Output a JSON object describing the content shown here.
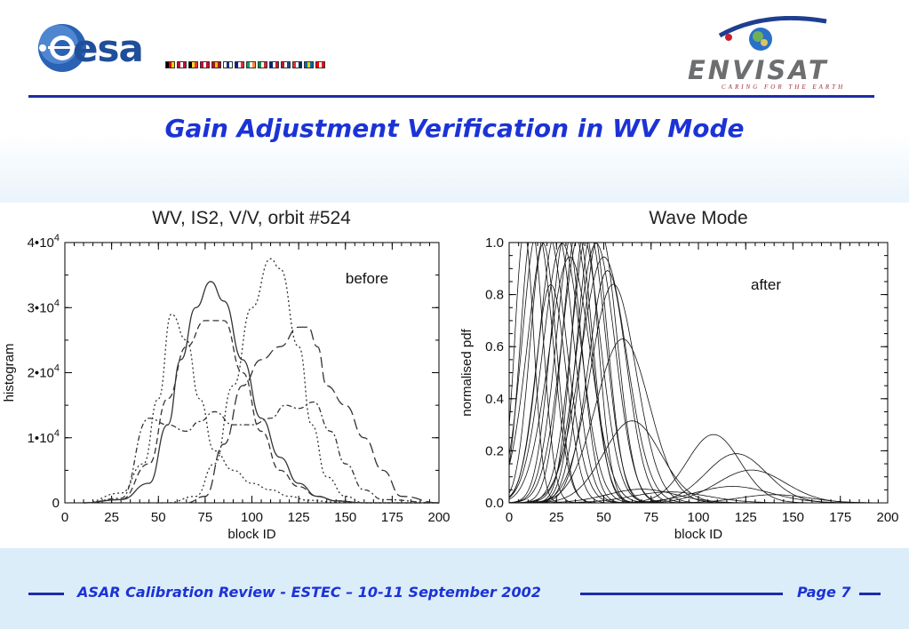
{
  "header": {
    "esa_logo_text": "esa",
    "envisat_logo_text": "ENVISAT",
    "envisat_tagline": "CARING FOR THE EARTH",
    "flag_colors": [
      [
        "#000000",
        "#dd0000",
        "#ffce00"
      ],
      [
        "#c60c30",
        "#ffffff",
        "#c60c30"
      ],
      [
        "#000000",
        "#fdda24",
        "#ef3340"
      ],
      [
        "#c60c30",
        "#ffffff",
        "#c60c30"
      ],
      [
        "#aa151b",
        "#f1bf00",
        "#aa151b"
      ],
      [
        "#ffffff",
        "#003580",
        "#ffffff"
      ],
      [
        "#002395",
        "#ffffff",
        "#ed2939"
      ],
      [
        "#169b62",
        "#ffffff",
        "#ff883e"
      ],
      [
        "#009246",
        "#ffffff",
        "#ce2b37"
      ],
      [
        "#00247d",
        "#ffffff",
        "#cf142b"
      ],
      [
        "#ae1c28",
        "#ffffff",
        "#21468b"
      ],
      [
        "#ef2b2d",
        "#ffffff",
        "#002868"
      ],
      [
        "#006aa7",
        "#fecc00",
        "#006aa7"
      ],
      [
        "#ff0000",
        "#ffffff",
        "#ff0000"
      ]
    ]
  },
  "title": "Gain Adjustment Verification in WV Mode",
  "footer": {
    "text": "ASAR Calibration Review - ESTEC – 10-11 September  2002",
    "page_label": "Page",
    "page_number": "7"
  },
  "chart_data": [
    {
      "type": "line",
      "title": "WV, IS2, V/V, orbit #524",
      "xlabel": "block ID",
      "ylabel": "histogram",
      "annotation": "before",
      "xlim": [
        0,
        200
      ],
      "ylim": [
        0,
        40000
      ],
      "xticks": [
        "0",
        "25",
        "50",
        "75",
        "100",
        "125",
        "150",
        "175",
        "200"
      ],
      "yticks": [
        {
          "value": 0,
          "base": "0",
          "exp": ""
        },
        {
          "value": 10000,
          "base": "1•10",
          "exp": "4"
        },
        {
          "value": 20000,
          "base": "2•10",
          "exp": "4"
        },
        {
          "value": 30000,
          "base": "3•10",
          "exp": "4"
        },
        {
          "value": 40000,
          "base": "4•10",
          "exp": "4"
        }
      ],
      "series": [
        {
          "style": "solid",
          "x": [
            10,
            30,
            45,
            55,
            62,
            70,
            78,
            85,
            95,
            105,
            115,
            125,
            135,
            145,
            160,
            200
          ],
          "y": [
            0,
            500,
            3000,
            12000,
            22000,
            30000,
            34000,
            31000,
            22000,
            13000,
            7000,
            3000,
            1000,
            300,
            0,
            0
          ]
        },
        {
          "style": "dotted",
          "x": [
            10,
            30,
            42,
            50,
            57,
            65,
            72,
            80,
            90,
            100,
            110,
            120,
            130,
            145,
            160,
            200
          ],
          "y": [
            0,
            1500,
            6000,
            16000,
            29000,
            25000,
            16000,
            8000,
            5000,
            3000,
            2000,
            1000,
            400,
            100,
            0,
            0
          ]
        },
        {
          "style": "dashdot",
          "x": [
            10,
            30,
            45,
            55,
            65,
            72,
            80,
            90,
            100,
            110,
            118,
            125,
            133,
            142,
            150,
            160,
            170,
            200
          ],
          "y": [
            0,
            700,
            13000,
            12000,
            11000,
            12500,
            14000,
            12000,
            12000,
            13000,
            15000,
            14500,
            15500,
            11000,
            6000,
            2000,
            500,
            0
          ]
        },
        {
          "style": "dashed",
          "x": [
            10,
            30,
            45,
            55,
            65,
            75,
            85,
            95,
            105,
            115,
            125,
            135,
            145,
            160,
            200
          ],
          "y": [
            0,
            500,
            6000,
            16000,
            24000,
            28000,
            28000,
            20000,
            11000,
            5000,
            2500,
            1000,
            300,
            0,
            0
          ]
        },
        {
          "style": "dotted",
          "x": [
            30,
            55,
            70,
            80,
            90,
            100,
            110,
            115,
            125,
            132,
            140,
            150,
            160,
            200
          ],
          "y": [
            0,
            0,
            1000,
            6000,
            18000,
            30000,
            37500,
            36000,
            24000,
            12000,
            4000,
            1000,
            0,
            0
          ]
        },
        {
          "style": "longdash",
          "x": [
            40,
            65,
            75,
            85,
            95,
            105,
            115,
            125,
            130,
            135,
            140,
            150,
            160,
            170,
            180,
            200
          ],
          "y": [
            0,
            0,
            1000,
            9000,
            18000,
            22000,
            24000,
            27000,
            27000,
            24000,
            18000,
            15000,
            10000,
            5000,
            1000,
            0
          ]
        }
      ]
    },
    {
      "type": "line",
      "title": "Wave Mode",
      "xlabel": "block ID",
      "ylabel": "normalised pdf",
      "annotation": "after",
      "xlim": [
        0,
        200
      ],
      "ylim": [
        0,
        1.0
      ],
      "xticks": [
        "0",
        "25",
        "50",
        "75",
        "100",
        "125",
        "150",
        "175",
        "200"
      ],
      "yticks": [
        "0.0",
        "0.2",
        "0.4",
        "0.6",
        "0.8",
        "1.0"
      ],
      "series_peaks": [
        {
          "center": 8,
          "width": 5,
          "height": 1.0
        },
        {
          "center": 12,
          "width": 6,
          "height": 1.0
        },
        {
          "center": 15,
          "width": 8,
          "height": 1.0
        },
        {
          "center": 18,
          "width": 7,
          "height": 0.95
        },
        {
          "center": 20,
          "width": 10,
          "height": 1.0
        },
        {
          "center": 22,
          "width": 8,
          "height": 0.8
        },
        {
          "center": 25,
          "width": 9,
          "height": 1.0
        },
        {
          "center": 28,
          "width": 10,
          "height": 0.95
        },
        {
          "center": 30,
          "width": 8,
          "height": 1.0
        },
        {
          "center": 32,
          "width": 11,
          "height": 0.9
        },
        {
          "center": 34,
          "width": 9,
          "height": 1.0
        },
        {
          "center": 36,
          "width": 8,
          "height": 1.0
        },
        {
          "center": 38,
          "width": 10,
          "height": 1.0
        },
        {
          "center": 40,
          "width": 7,
          "height": 1.0
        },
        {
          "center": 42,
          "width": 9,
          "height": 1.0
        },
        {
          "center": 44,
          "width": 8,
          "height": 1.0
        },
        {
          "center": 46,
          "width": 10,
          "height": 0.95
        },
        {
          "center": 48,
          "width": 9,
          "height": 1.0
        },
        {
          "center": 50,
          "width": 12,
          "height": 0.9
        },
        {
          "center": 52,
          "width": 10,
          "height": 0.85
        },
        {
          "center": 55,
          "width": 12,
          "height": 0.8
        },
        {
          "center": 60,
          "width": 14,
          "height": 0.6
        },
        {
          "center": 65,
          "width": 15,
          "height": 0.3
        },
        {
          "center": 70,
          "width": 18,
          "height": 0.05
        },
        {
          "center": 85,
          "width": 20,
          "height": 0.04
        },
        {
          "center": 108,
          "width": 14,
          "height": 0.25
        },
        {
          "center": 120,
          "width": 16,
          "height": 0.18
        },
        {
          "center": 128,
          "width": 18,
          "height": 0.12
        },
        {
          "center": 118,
          "width": 20,
          "height": 0.06
        },
        {
          "center": 140,
          "width": 18,
          "height": 0.03
        }
      ]
    }
  ]
}
